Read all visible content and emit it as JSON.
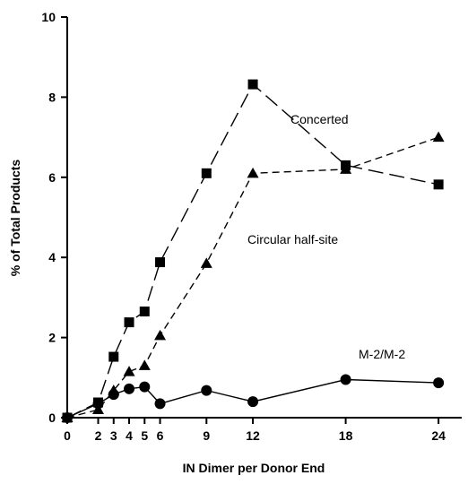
{
  "chart_data": {
    "type": "line",
    "title": "",
    "xlabel": "IN Dimer per Donor End",
    "ylabel": "% of Total Products",
    "xlim": [
      0,
      25.5
    ],
    "ylim": [
      0,
      10
    ],
    "x_ticks": [
      0,
      2,
      3,
      4,
      5,
      6,
      9,
      12,
      18,
      24
    ],
    "y_ticks": [
      0,
      2,
      4,
      6,
      8,
      10
    ],
    "grid": false,
    "legend": "none",
    "series": [
      {
        "name": "Concerted",
        "marker": "square",
        "line_style": "long-dash",
        "points": [
          [
            0,
            0.0
          ],
          [
            2,
            0.38
          ],
          [
            3,
            1.52
          ],
          [
            4,
            2.38
          ],
          [
            5,
            2.65
          ],
          [
            6,
            3.88
          ],
          [
            9,
            6.1
          ],
          [
            12,
            8.32
          ],
          [
            18,
            6.3
          ],
          [
            24,
            5.82
          ]
        ]
      },
      {
        "name": "Circular half-site",
        "marker": "triangle",
        "line_style": "short-dash",
        "points": [
          [
            0,
            0.0
          ],
          [
            2,
            0.2
          ],
          [
            3,
            0.68
          ],
          [
            4,
            1.15
          ],
          [
            5,
            1.3
          ],
          [
            6,
            2.05
          ],
          [
            9,
            3.85
          ],
          [
            12,
            6.1
          ],
          [
            18,
            6.2
          ],
          [
            24,
            7.0
          ]
        ]
      },
      {
        "name": "M-2/M-2",
        "marker": "circle",
        "line_style": "solid",
        "points": [
          [
            0,
            0.0
          ],
          [
            2,
            0.35
          ],
          [
            3,
            0.58
          ],
          [
            4,
            0.72
          ],
          [
            5,
            0.77
          ],
          [
            6,
            0.35
          ],
          [
            9,
            0.68
          ],
          [
            12,
            0.4
          ],
          [
            18,
            0.95
          ],
          [
            24,
            0.87
          ]
        ]
      }
    ]
  }
}
